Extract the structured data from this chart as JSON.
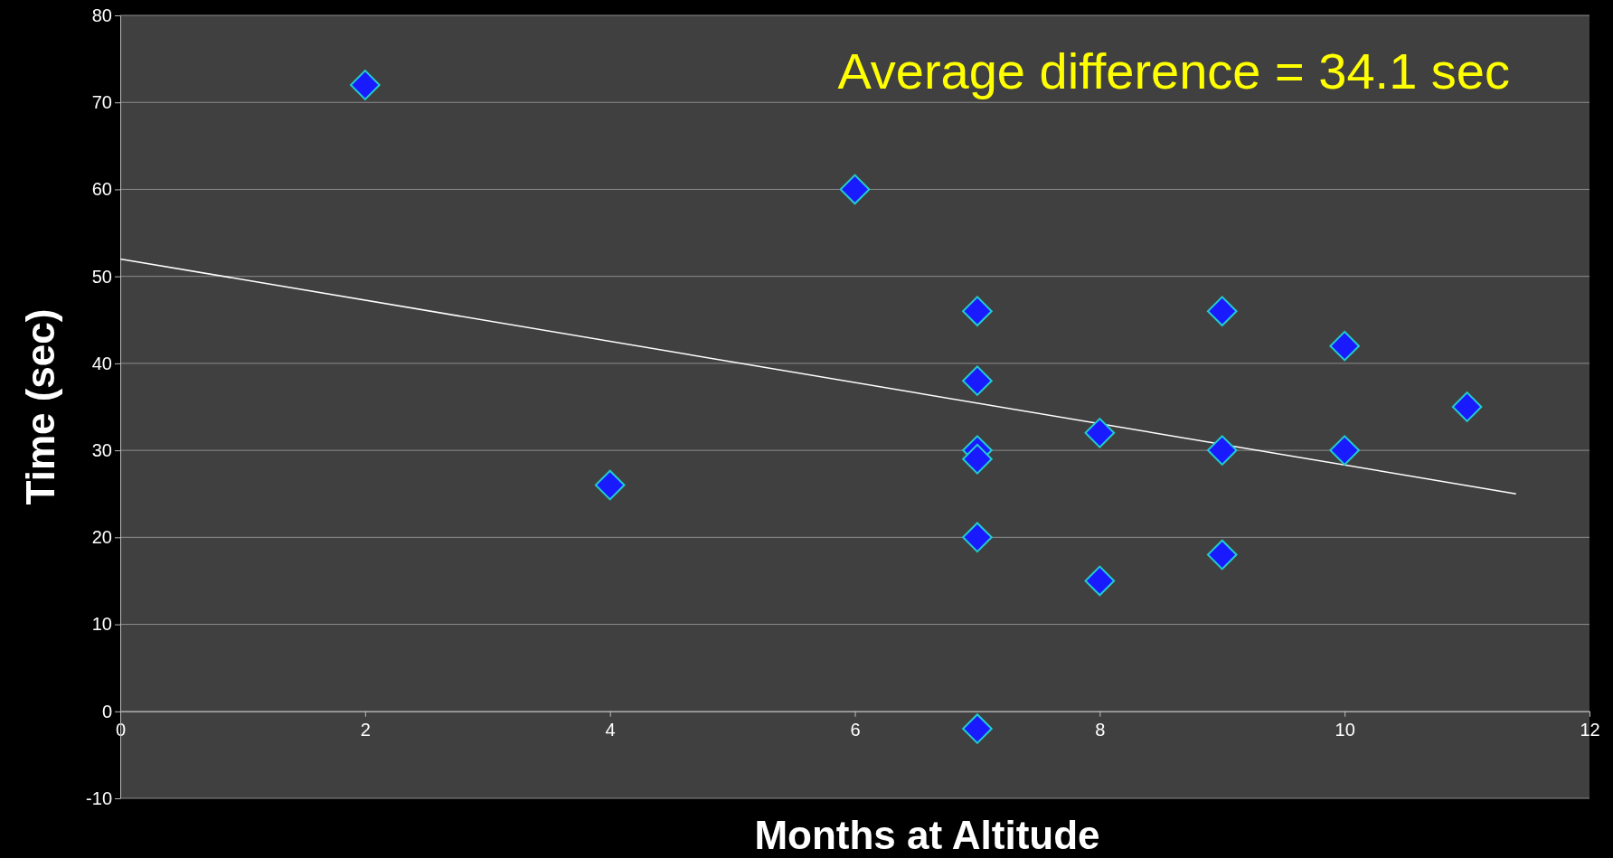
{
  "chart_data": {
    "type": "scatter",
    "xlabel": "Months at Altitude",
    "ylabel": "Time (sec)",
    "annotations": [
      "Average difference = 34.1 sec"
    ],
    "xlim": [
      0,
      12
    ],
    "xticks": [
      0,
      2,
      4,
      6,
      8,
      10,
      12
    ],
    "ylim": [
      -10,
      80
    ],
    "yticks": [
      -10,
      0,
      10,
      20,
      30,
      40,
      50,
      60,
      70,
      80
    ],
    "grid": "y",
    "marker": "diamond",
    "series": [
      {
        "color": "#1a1aff",
        "x": [
          2,
          4,
          6,
          7,
          7,
          7,
          7,
          7,
          7,
          8,
          8,
          9,
          9,
          9,
          10,
          10,
          11
        ],
        "values": [
          72,
          26,
          60,
          46,
          38,
          30,
          29,
          20,
          -2,
          32,
          15,
          46,
          30,
          18,
          42,
          30,
          35
        ]
      },
      {
        "type": "line",
        "color": "#ffffff",
        "marker": "none",
        "x": [
          0,
          11.4
        ],
        "values": [
          52,
          25
        ]
      }
    ]
  }
}
